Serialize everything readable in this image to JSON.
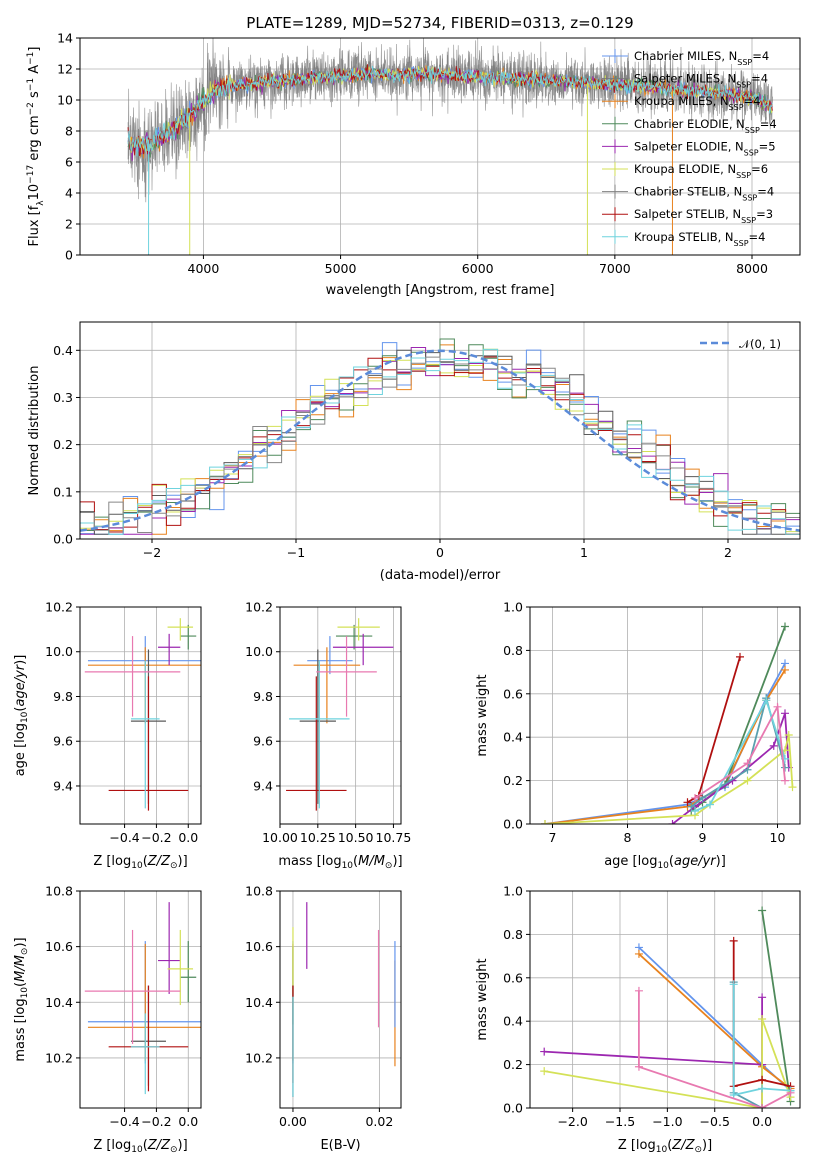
{
  "figure": {
    "title": "PLATE=1289, MJD=52734, FIBERID=0313, z=0.129"
  },
  "styles": {
    "colors": [
      "#6495ED",
      "#FF8C00",
      "#E8821E",
      "#4F8A5B",
      "#9C27B0",
      "#D4E157",
      "#5A5A5A",
      "#B01010",
      "#6FD3DE"
    ],
    "spec_colors": [
      "#6495ED",
      "#7A7A7A",
      "#E8821E",
      "#4F8A5B",
      "#9C27B0",
      "#D4E157",
      "#808080",
      "#B01010",
      "#6FD3DE"
    ],
    "normal_color": "#5B8BD9",
    "grid_color": "#b0b0b0"
  },
  "legend_spec": [
    {
      "name": "Chabrier MILES, N",
      "sub": "SSP",
      "suffix": "=4"
    },
    {
      "name": "Salpeter MILES, N",
      "sub": "SSP",
      "suffix": "=4"
    },
    {
      "name": "Kroupa MILES, N",
      "sub": "SSP",
      "suffix": "=4"
    },
    {
      "name": "Chabrier ELODIE, N",
      "sub": "SSP",
      "suffix": "=4"
    },
    {
      "name": "Salpeter ELODIE, N",
      "sub": "SSP",
      "suffix": "=5"
    },
    {
      "name": "Kroupa ELODIE, N",
      "sub": "SSP",
      "suffix": "=6"
    },
    {
      "name": "Chabrier STELIB, N",
      "sub": "SSP",
      "suffix": "=4"
    },
    {
      "name": "Salpeter STELIB, N",
      "sub": "SSP",
      "suffix": "=3"
    },
    {
      "name": "Kroupa STELIB, N",
      "sub": "SSP",
      "suffix": "=4"
    }
  ],
  "chart_data": [
    {
      "id": "spectrum",
      "type": "line",
      "xlabel": "wavelength [Angstrom, rest frame]",
      "ylabel": "Flux [f_λ10^-17 erg cm^-2 s^-1 A^-1]",
      "xlim": [
        3100,
        8350
      ],
      "ylim": [
        0,
        14
      ],
      "xticks": [
        4000,
        5000,
        6000,
        7000,
        8000
      ],
      "yticks": [
        0,
        2,
        4,
        6,
        8,
        10,
        12,
        14
      ],
      "x_range_data": [
        3450,
        8150
      ],
      "continuum": [
        [
          3450,
          7.2
        ],
        [
          3600,
          7.0
        ],
        [
          3700,
          7.6
        ],
        [
          3800,
          8.2
        ],
        [
          3900,
          9.0
        ],
        [
          4000,
          10.0
        ],
        [
          4100,
          10.8
        ],
        [
          4300,
          11.0
        ],
        [
          4500,
          11.2
        ],
        [
          4800,
          11.4
        ],
        [
          5000,
          11.5
        ],
        [
          5200,
          11.7
        ],
        [
          5400,
          11.6
        ],
        [
          5600,
          11.7
        ],
        [
          5800,
          11.6
        ],
        [
          6000,
          11.5
        ],
        [
          6200,
          11.4
        ],
        [
          6400,
          11.3
        ],
        [
          6600,
          11.2
        ],
        [
          6800,
          11.1
        ],
        [
          7000,
          11.0
        ],
        [
          7200,
          10.9
        ],
        [
          7400,
          10.7
        ],
        [
          7600,
          10.6
        ],
        [
          7800,
          10.4
        ],
        [
          8000,
          10.2
        ],
        [
          8150,
          9.5
        ]
      ],
      "dropouts": [
        [
          3900,
          5
        ],
        [
          6800,
          2
        ],
        [
          7420,
          7
        ],
        [
          3600,
          3
        ]
      ]
    },
    {
      "id": "residuals",
      "type": "histogram",
      "xlabel": "(data-model)/error",
      "ylabel": "Normed distribution",
      "xlim": [
        -2.5,
        2.5
      ],
      "ylim": [
        0,
        0.46
      ],
      "xticks": [
        -2,
        -1,
        0,
        1,
        2
      ],
      "yticks": [
        0.0,
        0.1,
        0.2,
        0.3,
        0.4
      ],
      "bin_width": 0.1,
      "legend": "𝒩(0, 1)"
    },
    {
      "id": "age_vs_Z",
      "type": "scatter",
      "xlabel": "Z [log10(Z/Z⊙)]",
      "ylabel": "age  [log10(age/yr)]",
      "xlim": [
        -0.68,
        0.08
      ],
      "ylim": [
        9.23,
        10.2
      ],
      "xticks": [
        -0.4,
        -0.2,
        0.0
      ],
      "yticks": [
        9.4,
        9.6,
        9.8,
        10.0,
        10.2
      ],
      "points": [
        {
          "x": -0.27,
          "y": 9.96,
          "xerr": 0.36,
          "yerr": [
            0.06,
            0.11
          ],
          "c": 0
        },
        {
          "x": -0.27,
          "y": 9.94,
          "xerr": 0.36,
          "yerr": [
            0.26,
            0.08
          ],
          "c": 2
        },
        {
          "x": 0.0,
          "y": 10.07,
          "xerr": 0.05,
          "yerr": [
            0.06,
            0.05
          ],
          "c": 3
        },
        {
          "x": -0.12,
          "y": 10.02,
          "xerr": 0.07,
          "yerr": [
            0.08,
            0.06
          ],
          "c": 4
        },
        {
          "x": -0.05,
          "y": 10.11,
          "xerr": 0.08,
          "yerr": [
            0.06,
            0.04
          ],
          "c": 5
        },
        {
          "x": -0.25,
          "y": 9.69,
          "xerr": 0.11,
          "yerr": [
            0.37,
            0.32
          ],
          "c": 6
        },
        {
          "x": -0.25,
          "y": 9.38,
          "xerr": 0.25,
          "yerr": [
            0.09,
            0.51
          ],
          "c": 7
        },
        {
          "x": -0.27,
          "y": 9.7,
          "xerr": 0.09,
          "yerr": [
            0.4,
            0.26
          ],
          "c": 8
        },
        {
          "x": -0.35,
          "y": 9.91,
          "xerr": 0.3,
          "yerr": [
            0.2,
            0.16
          ],
          "c": 9
        }
      ]
    },
    {
      "id": "age_vs_mass",
      "type": "scatter",
      "xlabel": "mass [log10(M/M⊙)]",
      "ylabel": "",
      "xlim": [
        10.0,
        10.8
      ],
      "ylim": [
        9.23,
        10.2
      ],
      "xticks": [
        10.0,
        10.25,
        10.5,
        10.75
      ],
      "xticklabels": [
        "10.00",
        "10.25",
        "10.50",
        "10.75"
      ],
      "yticks": [
        9.4,
        9.6,
        9.8,
        10.0,
        10.2
      ],
      "points": [
        {
          "x": 10.33,
          "y": 9.96,
          "xerr": 0.15,
          "yerr": [
            0.06,
            0.11
          ],
          "c": 0
        },
        {
          "x": 10.31,
          "y": 9.94,
          "xerr": 0.22,
          "yerr": [
            0.26,
            0.08
          ],
          "c": 2
        },
        {
          "x": 10.49,
          "y": 10.07,
          "xerr": 0.12,
          "yerr": [
            0.06,
            0.05
          ],
          "c": 3
        },
        {
          "x": 10.55,
          "y": 10.02,
          "xerr": 0.2,
          "yerr": [
            0.08,
            0.06
          ],
          "c": 4
        },
        {
          "x": 10.52,
          "y": 10.11,
          "xerr": 0.14,
          "yerr": [
            0.06,
            0.04
          ],
          "c": 5
        },
        {
          "x": 10.25,
          "y": 9.69,
          "xerr": 0.12,
          "yerr": [
            0.37,
            0.32
          ],
          "c": 6
        },
        {
          "x": 10.24,
          "y": 9.38,
          "xerr": 0.2,
          "yerr": [
            0.09,
            0.51
          ],
          "c": 7
        },
        {
          "x": 10.26,
          "y": 9.7,
          "xerr": 0.2,
          "yerr": [
            0.4,
            0.26
          ],
          "c": 8
        },
        {
          "x": 10.44,
          "y": 9.91,
          "xerr": 0.2,
          "yerr": [
            0.2,
            0.16
          ],
          "c": 9
        }
      ]
    },
    {
      "id": "weight_vs_age",
      "type": "line",
      "xlabel": "age  [log10(age/yr)]",
      "ylabel": "mass weight",
      "xlim": [
        6.7,
        10.3
      ],
      "ylim": [
        0,
        1.0
      ],
      "xticks": [
        7,
        8,
        9,
        10
      ],
      "yticks": [
        0.0,
        0.2,
        0.4,
        0.6,
        0.8,
        1.0
      ],
      "series": [
        {
          "c": 0,
          "points": [
            [
              6.9,
              0.0
            ],
            [
              8.8,
              0.09
            ],
            [
              9.3,
              0.17
            ],
            [
              9.85,
              0.58
            ],
            [
              10.1,
              0.74
            ]
          ]
        },
        {
          "c": 2,
          "points": [
            [
              6.9,
              0.0
            ],
            [
              8.8,
              0.08
            ],
            [
              9.3,
              0.18
            ],
            [
              9.85,
              0.57
            ],
            [
              10.1,
              0.71
            ]
          ]
        },
        {
          "c": 3,
          "points": [
            [
              8.85,
              0.06
            ],
            [
              9.0,
              0.1
            ],
            [
              9.3,
              0.18
            ],
            [
              10.1,
              0.91
            ]
          ]
        },
        {
          "c": 4,
          "points": [
            [
              8.6,
              0.0
            ],
            [
              8.9,
              0.08
            ],
            [
              9.4,
              0.2
            ],
            [
              9.95,
              0.36
            ],
            [
              10.1,
              0.51
            ],
            [
              10.15,
              0.26
            ]
          ]
        },
        {
          "c": 5,
          "points": [
            [
              6.9,
              0.0
            ],
            [
              8.9,
              0.04
            ],
            [
              9.1,
              0.09
            ],
            [
              9.6,
              0.2
            ],
            [
              10.1,
              0.34
            ],
            [
              10.15,
              0.41
            ],
            [
              10.2,
              0.17
            ]
          ]
        },
        {
          "c": 6,
          "points": [
            [
              8.85,
              0.08
            ],
            [
              9.0,
              0.12
            ],
            [
              9.6,
              0.25
            ],
            [
              9.85,
              0.58
            ],
            [
              10.1,
              0.26
            ]
          ]
        },
        {
          "c": 7,
          "points": [
            [
              8.8,
              0.1
            ],
            [
              8.95,
              0.13
            ],
            [
              9.5,
              0.77
            ]
          ]
        },
        {
          "c": 8,
          "points": [
            [
              8.9,
              0.06
            ],
            [
              9.1,
              0.09
            ],
            [
              9.85,
              0.57
            ],
            [
              10.1,
              0.3
            ]
          ]
        },
        {
          "c": 9,
          "points": [
            [
              8.9,
              0.12
            ],
            [
              9.6,
              0.28
            ],
            [
              10.0,
              0.54
            ],
            [
              10.1,
              0.2
            ]
          ]
        }
      ]
    },
    {
      "id": "mass_vs_Z",
      "type": "scatter",
      "xlabel": "Z [log10(Z/Z⊙)]",
      "ylabel": "mass [log10(M/M⊙)]",
      "xlim": [
        -0.68,
        0.08
      ],
      "ylim": [
        10.02,
        10.8
      ],
      "xticks": [
        -0.4,
        -0.2,
        0.0
      ],
      "yticks": [
        10.2,
        10.4,
        10.6,
        10.8
      ],
      "points": [
        {
          "x": -0.27,
          "y": 10.33,
          "xerr": 0.36,
          "yerr": [
            0.15,
            0.29
          ],
          "c": 0
        },
        {
          "x": -0.27,
          "y": 10.31,
          "xerr": 0.36,
          "yerr": [
            0.12,
            0.3
          ],
          "c": 2
        },
        {
          "x": 0.0,
          "y": 10.49,
          "xerr": 0.05,
          "yerr": [
            0.09,
            0.13
          ],
          "c": 3
        },
        {
          "x": -0.12,
          "y": 10.55,
          "xerr": 0.07,
          "yerr": [
            0.12,
            0.21
          ],
          "c": 4
        },
        {
          "x": -0.05,
          "y": 10.52,
          "xerr": 0.08,
          "yerr": [
            0.13,
            0.14
          ],
          "c": 5
        },
        {
          "x": -0.25,
          "y": 10.26,
          "xerr": 0.11,
          "yerr": [
            0.16,
            0.2
          ],
          "c": 6
        },
        {
          "x": -0.25,
          "y": 10.24,
          "xerr": 0.25,
          "yerr": [
            0.16,
            0.22
          ],
          "c": 7
        },
        {
          "x": -0.27,
          "y": 10.24,
          "xerr": 0.09,
          "yerr": [
            0.17,
            0.12
          ],
          "c": 8
        },
        {
          "x": -0.35,
          "y": 10.44,
          "xerr": 0.3,
          "yerr": [
            0.19,
            0.22
          ],
          "c": 9
        }
      ]
    },
    {
      "id": "mass_vs_ebv",
      "type": "scatter",
      "xlabel": "E(B-V)",
      "ylabel": "",
      "xlim": [
        -0.003,
        0.025
      ],
      "ylim": [
        10.02,
        10.8
      ],
      "xticks": [
        0.0,
        0.02
      ],
      "xticklabels": [
        "0.00",
        "0.02"
      ],
      "yticks": [
        10.2,
        10.4,
        10.6,
        10.8
      ],
      "points": [
        {
          "x": 0.0,
          "y": 10.33,
          "yerr": [
            0.15,
            0.29
          ],
          "c": 0
        },
        {
          "x": 0.0,
          "y": 10.31,
          "yerr": [
            0.12,
            0.3
          ],
          "c": 2
        },
        {
          "x": 0.0,
          "y": 10.45,
          "yerr": [
            0.13,
            0.15
          ],
          "c": 3
        },
        {
          "x": 0.0032,
          "y": 10.61,
          "yerr": [
            0.09,
            0.15
          ],
          "c": 4
        },
        {
          "x": 0.0,
          "y": 10.55,
          "yerr": [
            0.12,
            0.12
          ],
          "c": 5
        },
        {
          "x": 0.0,
          "y": 10.3,
          "yerr": [
            0.24,
            0.16
          ],
          "c": 6
        },
        {
          "x": 0.0,
          "y": 10.28,
          "yerr": [
            0.17,
            0.18
          ],
          "c": 7
        },
        {
          "x": 0.0,
          "y": 10.26,
          "yerr": [
            0.2,
            0.16
          ],
          "c": 8
        },
        {
          "x": 0.0198,
          "y": 10.48,
          "yerr": [
            0.17,
            0.18
          ],
          "c": 9
        },
        {
          "x": 0.0236,
          "y": 10.37,
          "yerr": [
            0.2,
            0.18
          ],
          "c": 2
        },
        {
          "x": 0.0236,
          "y": 10.43,
          "yerr": [
            0.12,
            0.19
          ],
          "c": 0
        }
      ]
    },
    {
      "id": "weight_vs_Z",
      "type": "line",
      "xlabel": "Z [log10(Z/Z⊙)]",
      "ylabel": "mass weight",
      "xlim": [
        -2.45,
        0.4
      ],
      "ylim": [
        0,
        1.0
      ],
      "xticks": [
        -2.0,
        -1.5,
        -1.0,
        -0.5,
        0.0
      ],
      "yticks": [
        0.0,
        0.2,
        0.4,
        0.6,
        0.8,
        1.0
      ],
      "series": [
        {
          "c": 0,
          "points": [
            [
              -1.3,
              0.74
            ],
            [
              0.0,
              0.2
            ],
            [
              0.3,
              0.08
            ]
          ]
        },
        {
          "c": 2,
          "points": [
            [
              -1.3,
              0.71
            ],
            [
              0.0,
              0.19
            ],
            [
              0.3,
              0.09
            ]
          ]
        },
        {
          "c": 3,
          "points": [
            [
              0.0,
              0.91
            ],
            [
              0.3,
              0.03
            ]
          ]
        },
        {
          "c": 4,
          "points": [
            [
              -2.3,
              0.26
            ],
            [
              0.0,
              0.2
            ],
            [
              0.0,
              0.51
            ],
            [
              0.0,
              0.0
            ]
          ]
        },
        {
          "c": 5,
          "points": [
            [
              -2.3,
              0.17
            ],
            [
              0.0,
              0.0
            ],
            [
              0.0,
              0.41
            ],
            [
              0.3,
              0.05
            ]
          ]
        },
        {
          "c": 6,
          "points": [
            [
              -0.3,
              0.58
            ],
            [
              -0.3,
              0.07
            ],
            [
              0.0,
              0.0
            ]
          ]
        },
        {
          "c": 7,
          "points": [
            [
              -0.3,
              0.77
            ],
            [
              -0.3,
              0.1
            ],
            [
              0.0,
              0.13
            ],
            [
              0.3,
              0.1
            ]
          ]
        },
        {
          "c": 8,
          "points": [
            [
              -0.3,
              0.57
            ],
            [
              -0.3,
              0.06
            ],
            [
              0.0,
              0.09
            ],
            [
              0.3,
              0.08
            ]
          ]
        },
        {
          "c": 9,
          "points": [
            [
              -1.3,
              0.54
            ],
            [
              -1.3,
              0.19
            ],
            [
              0.0,
              0.0
            ],
            [
              0.3,
              0.07
            ]
          ]
        }
      ]
    }
  ]
}
